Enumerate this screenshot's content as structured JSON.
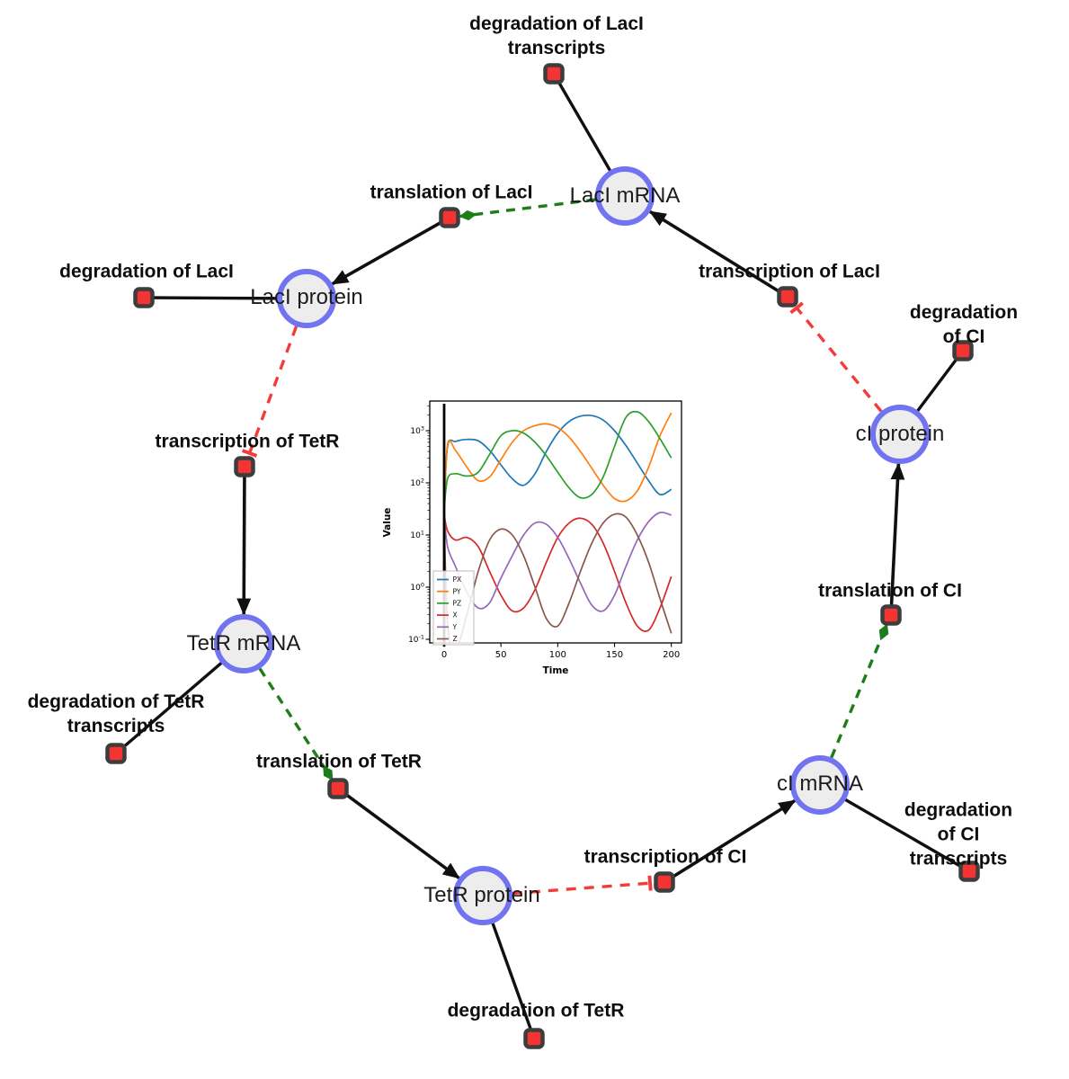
{
  "diagram": {
    "species": [
      {
        "id": "laci_mrna",
        "label": "LacI mRNA"
      },
      {
        "id": "laci_protein",
        "label": "LacI protein"
      },
      {
        "id": "ci_protein",
        "label": "cI protein"
      },
      {
        "id": "ci_mrna",
        "label": "cI mRNA"
      },
      {
        "id": "tetr_protein",
        "label": "TetR protein"
      },
      {
        "id": "tetr_mrna",
        "label": "TetR mRNA"
      }
    ],
    "reactions": [
      {
        "id": "deg_laci_tx",
        "label": "degradation of LacI\ntranscripts"
      },
      {
        "id": "transl_laci",
        "label": "translation of LacI"
      },
      {
        "id": "deg_laci",
        "label": "degradation of LacI"
      },
      {
        "id": "txn_laci",
        "label": "transcription of LacI"
      },
      {
        "id": "deg_ci",
        "label": "degradation of CI"
      },
      {
        "id": "txn_tetr",
        "label": "transcription of TetR"
      },
      {
        "id": "transl_ci",
        "label": "translation of CI"
      },
      {
        "id": "deg_tetr_tx",
        "label": "degradation of TetR\ntranscripts"
      },
      {
        "id": "transl_tetr",
        "label": "translation of TetR"
      },
      {
        "id": "txn_ci",
        "label": "transcription of CI"
      },
      {
        "id": "deg_ci_tx",
        "label": "degradation of CI\ntranscripts"
      },
      {
        "id": "deg_tetr",
        "label": "degradation of TetR"
      }
    ],
    "edges": [
      {
        "source": "laci_mrna",
        "target": "deg_laci_tx",
        "type": "consumption"
      },
      {
        "source": "laci_mrna",
        "target": "transl_laci",
        "type": "modifier"
      },
      {
        "source": "transl_laci",
        "target": "laci_protein",
        "type": "production"
      },
      {
        "source": "laci_protein",
        "target": "deg_laci",
        "type": "consumption"
      },
      {
        "source": "txn_laci",
        "target": "laci_mrna",
        "type": "production"
      },
      {
        "source": "ci_protein",
        "target": "txn_laci",
        "type": "inhibition"
      },
      {
        "source": "ci_protein",
        "target": "deg_ci",
        "type": "consumption"
      },
      {
        "source": "transl_ci",
        "target": "ci_protein",
        "type": "production"
      },
      {
        "source": "ci_mrna",
        "target": "transl_ci",
        "type": "modifier"
      },
      {
        "source": "txn_ci",
        "target": "ci_mrna",
        "type": "production"
      },
      {
        "source": "ci_mrna",
        "target": "deg_ci_tx",
        "type": "consumption"
      },
      {
        "source": "tetr_protein",
        "target": "txn_ci",
        "type": "inhibition"
      },
      {
        "source": "transl_tetr",
        "target": "tetr_protein",
        "type": "production"
      },
      {
        "source": "tetr_protein",
        "target": "deg_tetr",
        "type": "consumption"
      },
      {
        "source": "tetr_mrna",
        "target": "transl_tetr",
        "type": "modifier"
      },
      {
        "source": "txn_tetr",
        "target": "tetr_mrna",
        "type": "production"
      },
      {
        "source": "tetr_mrna",
        "target": "deg_tetr_tx",
        "type": "consumption"
      },
      {
        "source": "laci_protein",
        "target": "txn_tetr",
        "type": "inhibition"
      }
    ],
    "colors": {
      "species_fill": "#ededed",
      "species_stroke": "#7173f1",
      "reaction_fill": "#f43333",
      "reaction_stroke": "#3d3d3d",
      "production_edge": "#101010",
      "consumption_edge": "#101010",
      "modifier_edge": "#1b7e1b",
      "inhibition_edge": "#f43b3b"
    }
  },
  "chart_data": {
    "type": "line",
    "title": "",
    "xlabel": "Time",
    "ylabel": "Value",
    "x_ticks": [
      0,
      50,
      100,
      150,
      200
    ],
    "xlim": [
      -12,
      210
    ],
    "y_scale": "log",
    "y_tick_exponents": [
      -1,
      0,
      1,
      2,
      3
    ],
    "y_ticks": [
      "10⁻¹",
      "10⁰",
      "10¹",
      "10²",
      "10³"
    ],
    "ylim_log10": [
      -1.1,
      3.6
    ],
    "legend_position": "lower left",
    "vertical_line_x": 0,
    "grid": false,
    "x": [
      0,
      3,
      10,
      20,
      30,
      40,
      50,
      60,
      70,
      80,
      90,
      100,
      110,
      120,
      130,
      140,
      150,
      160,
      170,
      180,
      190,
      200
    ],
    "series": [
      {
        "name": "PX",
        "color": "#1f77b4",
        "values": [
          30,
          500,
          620,
          680,
          640,
          420,
          220,
          120,
          90,
          150,
          400,
          900,
          1500,
          1900,
          1950,
          1600,
          1000,
          520,
          240,
          110,
          60,
          75
        ]
      },
      {
        "name": "PY",
        "color": "#ff7f0e",
        "values": [
          30,
          550,
          420,
          200,
          110,
          130,
          280,
          600,
          1000,
          1250,
          1350,
          1150,
          750,
          400,
          190,
          90,
          50,
          45,
          70,
          200,
          800,
          2200
        ]
      },
      {
        "name": "PZ",
        "color": "#2ca02c",
        "values": [
          30,
          120,
          150,
          135,
          160,
          350,
          800,
          1000,
          900,
          600,
          330,
          160,
          80,
          52,
          60,
          130,
          500,
          1800,
          2300,
          1500,
          700,
          300
        ]
      },
      {
        "name": "X",
        "color": "#d62728",
        "values": [
          25,
          12,
          8,
          9,
          6,
          2,
          0.7,
          0.35,
          0.4,
          0.9,
          3,
          9,
          17,
          21,
          16,
          7,
          2,
          0.5,
          0.18,
          0.15,
          0.4,
          1.6
        ]
      },
      {
        "name": "Y",
        "color": "#9467bd",
        "values": [
          25,
          6,
          2.5,
          0.8,
          0.4,
          0.5,
          1.5,
          4,
          10,
          17,
          16,
          9,
          3.5,
          1.2,
          0.45,
          0.35,
          0.7,
          2.5,
          8,
          18,
          27,
          24
        ]
      },
      {
        "name": "Z",
        "color": "#8c564b",
        "values": [
          25,
          0.2,
          0.06,
          0.3,
          2,
          8,
          13,
          10,
          4,
          1,
          0.25,
          0.18,
          0.5,
          2,
          7,
          17,
          25,
          22,
          10,
          3,
          0.6,
          0.13
        ]
      }
    ]
  }
}
